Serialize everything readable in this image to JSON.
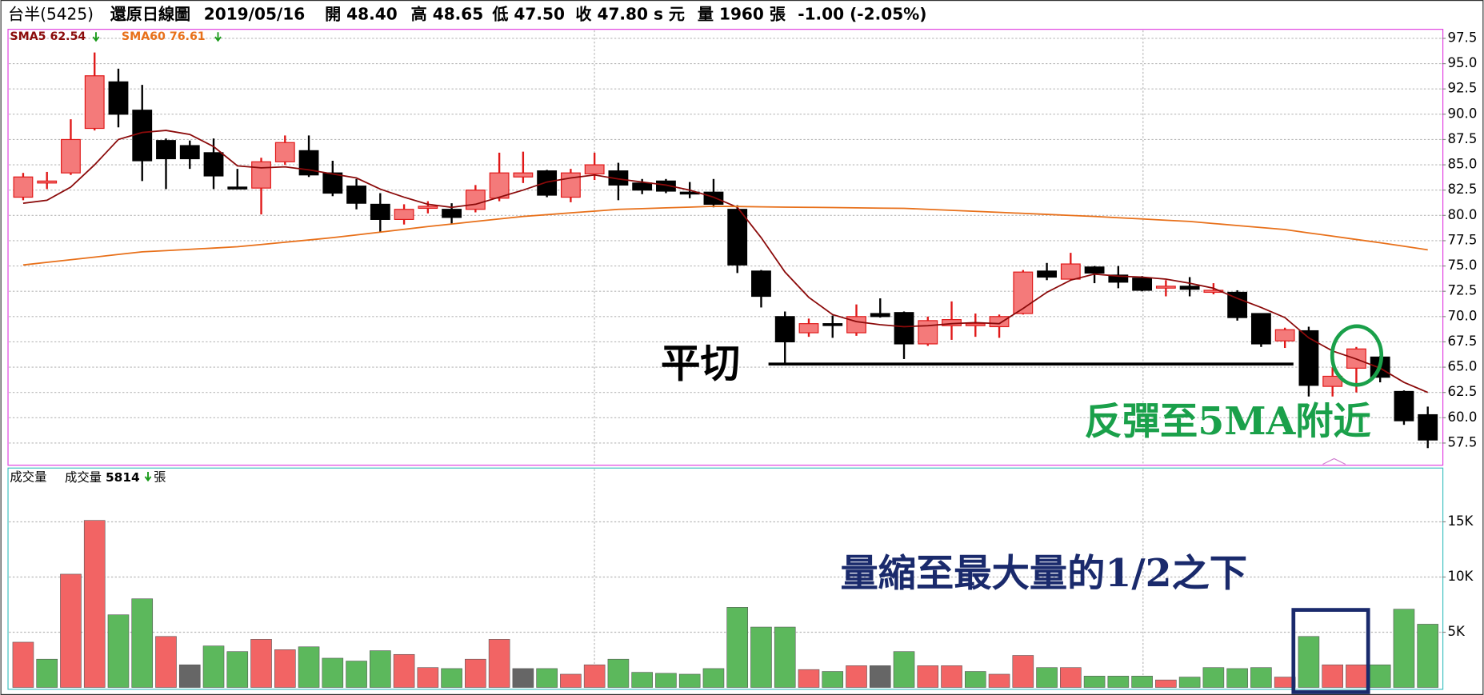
{
  "header": {
    "name": "台半(5425)",
    "chart_kind": "還原日線圖",
    "date": "2019/05/16",
    "open": "開 48.40",
    "high": "高 48.65",
    "low": "低 47.50",
    "close": "收 47.80 s 元",
    "volume": "量 1960 張",
    "change": "-1.00 (-2.05%)"
  },
  "chart_data": [
    {
      "type": "candlestick",
      "up_color": "#f47a7a",
      "up_edge": "#e01818",
      "down_color": "#000000",
      "open": [
        81.8,
        83.2,
        84.2,
        88.6,
        93.2,
        90.4,
        87.4,
        86.9,
        86.2,
        82.8,
        82.7,
        85.3,
        86.4,
        84.2,
        82.9,
        81.1,
        79.6,
        80.7,
        80.6,
        80.6,
        81.7,
        83.8,
        84.4,
        81.8,
        84.1,
        84.4,
        83.2,
        83.4,
        82.3,
        82.3,
        80.6,
        74.5,
        70.0,
        68.4,
        69.3,
        68.4,
        70.3,
        70.4,
        67.3,
        69.1,
        69.1,
        69.0,
        70.3,
        74.5,
        73.7,
        74.9,
        74.1,
        73.8,
        72.9,
        73.0,
        72.4,
        72.4,
        70.3,
        67.6,
        68.6,
        63.1,
        64.9,
        66.0,
        62.6,
        60.3
      ],
      "high": [
        84.2,
        84.3,
        89.5,
        96.1,
        94.5,
        92.9,
        87.6,
        87.4,
        87.6,
        84.6,
        85.7,
        87.9,
        87.9,
        85.4,
        83.6,
        82.2,
        81.1,
        81.4,
        81.2,
        83.0,
        86.2,
        86.3,
        84.5,
        84.6,
        86.2,
        85.2,
        83.6,
        83.6,
        83.3,
        83.6,
        81.0,
        74.6,
        70.5,
        69.8,
        70.1,
        71.2,
        71.8,
        70.5,
        70.0,
        71.5,
        70.3,
        70.2,
        74.6,
        75.3,
        76.3,
        75.0,
        75.0,
        74.0,
        73.6,
        73.9,
        73.3,
        72.6,
        70.3,
        68.9,
        69.0,
        65.0,
        67.0,
        66.1,
        62.7,
        61.1
      ],
      "low": [
        81.5,
        82.6,
        84.0,
        88.4,
        88.7,
        83.4,
        82.6,
        84.6,
        82.6,
        82.6,
        80.1,
        85.0,
        83.8,
        81.9,
        80.6,
        78.4,
        79.1,
        80.2,
        79.2,
        80.3,
        81.4,
        83.2,
        81.8,
        81.3,
        83.5,
        81.5,
        82.1,
        82.2,
        81.7,
        80.8,
        74.3,
        70.9,
        65.3,
        68.0,
        67.9,
        68.1,
        69.9,
        65.8,
        67.1,
        67.7,
        68.0,
        67.9,
        70.2,
        73.6,
        73.6,
        73.3,
        72.8,
        72.5,
        72.0,
        72.0,
        72.2,
        69.6,
        67.0,
        66.9,
        62.1,
        62.1,
        62.5,
        63.5,
        59.3,
        57.0
      ],
      "close": [
        83.8,
        83.4,
        87.5,
        93.8,
        90.0,
        85.4,
        85.6,
        85.6,
        83.9,
        82.7,
        85.3,
        87.2,
        84.0,
        82.2,
        81.2,
        79.6,
        80.6,
        80.9,
        79.8,
        82.5,
        84.2,
        84.2,
        82.0,
        84.2,
        85.0,
        83.0,
        82.5,
        82.4,
        82.2,
        81.1,
        75.1,
        72.0,
        67.5,
        69.3,
        69.2,
        70.0,
        70.0,
        67.3,
        69.6,
        69.7,
        69.3,
        70.0,
        74.4,
        73.9,
        75.2,
        74.3,
        73.4,
        72.6,
        73.0,
        72.7,
        72.6,
        69.9,
        67.3,
        68.7,
        63.2,
        64.1,
        66.8,
        64.0,
        59.7,
        57.8
      ],
      "series": [
        {
          "name": "SMA5",
          "legend_value": 62.54,
          "color": "#8b0a0a",
          "values": [
            81.2,
            81.5,
            82.8,
            85.0,
            87.5,
            88.2,
            88.4,
            88.0,
            86.8,
            84.9,
            84.7,
            84.8,
            84.5,
            84.1,
            83.7,
            82.6,
            81.8,
            81.1,
            80.8,
            81.1,
            81.8,
            82.5,
            83.3,
            83.7,
            84.0,
            83.6,
            83.3,
            83.0,
            82.5,
            81.8,
            80.8,
            77.8,
            74.4,
            71.9,
            70.2,
            69.5,
            69.2,
            69.0,
            69.1,
            69.3,
            69.4,
            69.3,
            70.8,
            72.4,
            73.6,
            74.2,
            74.0,
            73.9,
            73.7,
            73.3,
            72.8,
            71.8,
            70.9,
            69.9,
            67.9,
            66.6,
            65.8,
            64.9,
            63.5,
            62.5
          ]
        },
        {
          "name": "SMA60",
          "legend_value": 76.61,
          "color": "#e8701a",
          "values": [
            75.1,
            75.36,
            75.62,
            75.88,
            76.14,
            76.4,
            76.52,
            76.65,
            76.77,
            76.9,
            77.12,
            77.35,
            77.57,
            77.8,
            78.07,
            78.35,
            78.62,
            78.9,
            79.15,
            79.4,
            79.65,
            79.9,
            80.07,
            80.25,
            80.42,
            80.6,
            80.67,
            80.75,
            80.82,
            80.9,
            80.88,
            80.85,
            80.82,
            80.8,
            80.78,
            80.75,
            80.72,
            80.7,
            80.6,
            80.5,
            80.4,
            80.3,
            80.2,
            80.1,
            80.0,
            79.9,
            79.77,
            79.65,
            79.52,
            79.4,
            79.2,
            79.0,
            78.8,
            78.6,
            78.27,
            77.95,
            77.62,
            77.3,
            76.95,
            76.6
          ]
        }
      ],
      "ylim": [
        55.4,
        98.3
      ],
      "yticks": [
        97.5,
        {
          "value": 95,
          "label": "95.0"
        },
        92.5,
        {
          "value": 90,
          "label": "90.0"
        },
        87.5,
        {
          "value": 85,
          "label": "85.0"
        },
        82.5,
        {
          "value": 80,
          "label": "80.0"
        },
        77.5,
        {
          "value": 75,
          "label": "75.0"
        },
        72.5,
        {
          "value": 70,
          "label": "70.0"
        },
        67.5,
        {
          "value": 65,
          "label": "65.0"
        },
        62.5,
        {
          "value": 60,
          "label": "60.0"
        },
        57.5
      ],
      "grid": true
    },
    {
      "type": "bar",
      "title": "成交量",
      "legend": {
        "name": "成交量",
        "value": 5814,
        "unit": "張"
      },
      "up_color": "#f26464",
      "down_color": "#5cb85c",
      "flat_color": "#666666",
      "values": [
        4100,
        2560,
        10260,
        15130,
        6580,
        8030,
        4620,
        2050,
        3760,
        3250,
        4360,
        3420,
        3680,
        2650,
        2390,
        3330,
        2990,
        1800,
        1710,
        2560,
        4360,
        1710,
        1710,
        1200,
        2050,
        2560,
        1370,
        1280,
        1200,
        1710,
        7260,
        5470,
        5470,
        1620,
        1450,
        1970,
        1970,
        3250,
        1970,
        1970,
        1450,
        1200,
        2900,
        1800,
        1800,
        1030,
        1030,
        1030,
        680,
        940,
        1800,
        1710,
        1800,
        940,
        4620,
        2050,
        2050,
        2050,
        7090,
        5730
      ],
      "ylim": [
        0,
        19700
      ],
      "yticks": [
        {
          "value": 5000,
          "label": "5K"
        },
        {
          "value": 10000,
          "label": "10K"
        },
        {
          "value": 15000,
          "label": "15K"
        }
      ],
      "grid": true
    }
  ],
  "annotations": [
    {
      "text": "平切",
      "color": "#000000"
    },
    {
      "text": "反彈至5MA附近",
      "color": "#1aa04a"
    },
    {
      "text": "量縮至最大量的1/2之下",
      "color": "#1a2a6c"
    }
  ]
}
